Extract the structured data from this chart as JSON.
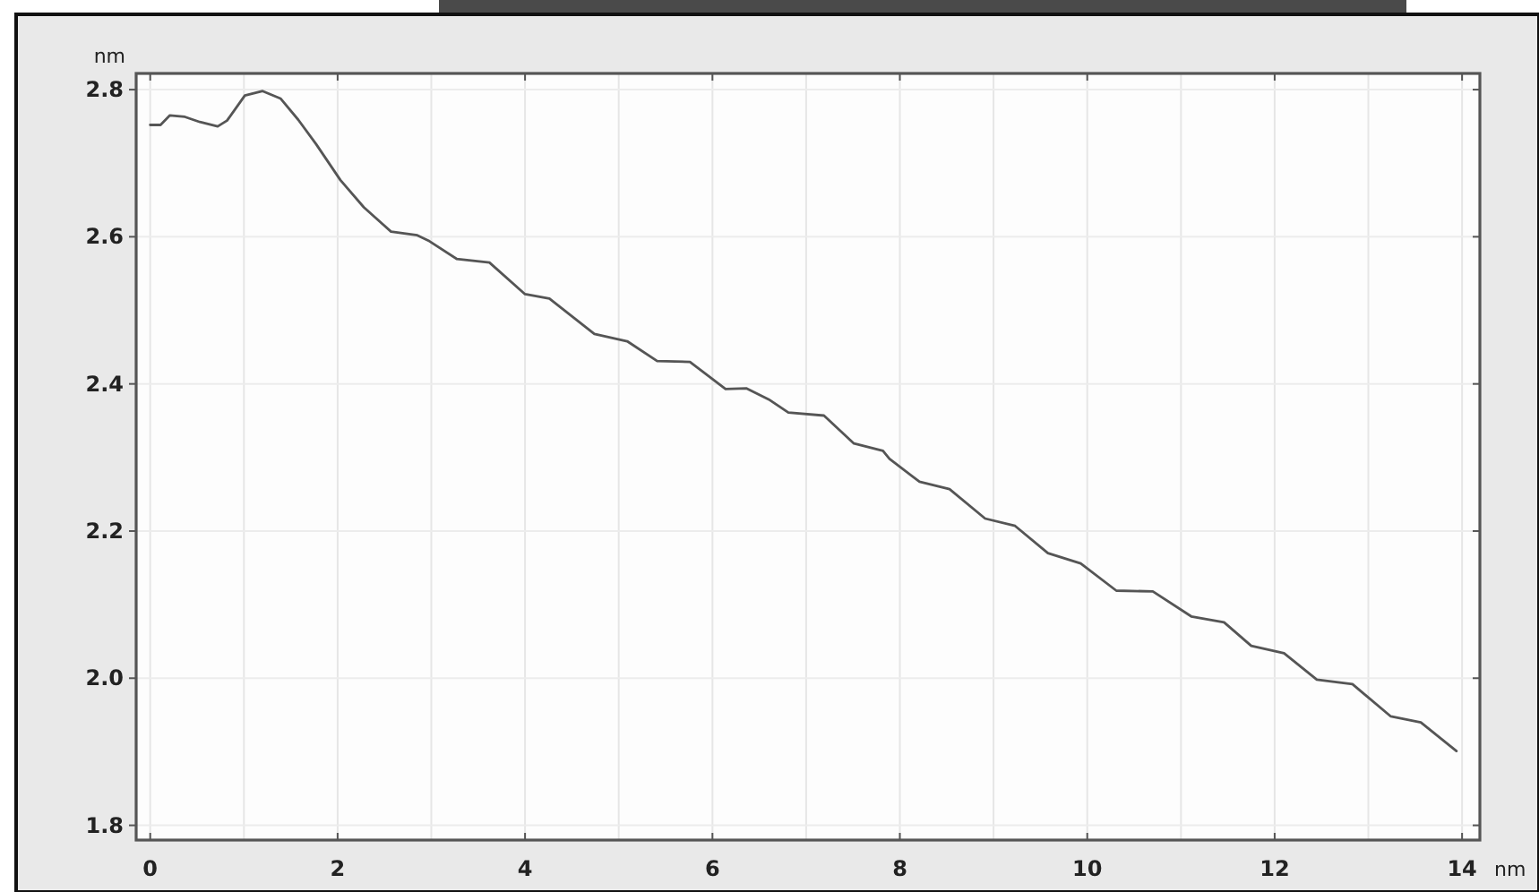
{
  "chart_data": {
    "type": "line",
    "xlabel": "nm",
    "ylabel": "nm",
    "xlim": [
      -0.15,
      14.19
    ],
    "ylim": [
      1.78,
      2.822
    ],
    "xticks": [
      0,
      {
        "value": 1,
        "label": null
      },
      2,
      {
        "value": 3,
        "label": null
      },
      4,
      {
        "value": 5,
        "label": null
      },
      6,
      {
        "value": 7,
        "label": null
      },
      8,
      {
        "value": 9,
        "label": null
      },
      10,
      {
        "value": 11,
        "label": null
      },
      12,
      {
        "value": 13,
        "label": null
      },
      {
        "value": 14,
        "label": "14"
      }
    ],
    "yticks": [
      {
        "value": 1.8,
        "label": "1.8"
      },
      {
        "value": 2.0,
        "label": "2.0"
      },
      {
        "value": 2.2,
        "label": "2.2"
      },
      {
        "value": 2.4,
        "label": "2.4"
      },
      {
        "value": 2.6,
        "label": "2.6"
      },
      {
        "value": 2.8,
        "label": "2.8"
      }
    ],
    "grid": true,
    "marker": "none",
    "line_style": "solid",
    "series": [
      {
        "color": "#555555",
        "x": [
          0,
          0.11,
          0.21,
          0.37,
          0.53,
          0.72,
          0.82,
          1.01,
          1.2,
          1.39,
          1.58,
          1.77,
          2.03,
          2.28,
          2.57,
          2.85,
          2.98,
          3.27,
          3.62,
          4.0,
          4.26,
          4.74,
          5.09,
          5.41,
          5.76,
          6.14,
          6.36,
          6.6,
          6.81,
          7.19,
          7.51,
          7.82,
          7.89,
          8.21,
          8.53,
          8.91,
          9.23,
          9.58,
          9.93,
          10.31,
          10.7,
          11.11,
          11.46,
          11.75,
          12.1,
          12.45,
          12.83,
          13.24,
          13.56,
          13.94
        ],
        "values": [
          2.752,
          2.752,
          2.765,
          2.763,
          2.756,
          2.75,
          2.758,
          2.792,
          2.798,
          2.788,
          2.759,
          2.726,
          2.677,
          2.64,
          2.607,
          2.602,
          2.594,
          2.57,
          2.565,
          2.522,
          2.516,
          2.468,
          2.458,
          2.431,
          2.43,
          2.393,
          2.394,
          2.379,
          2.361,
          2.357,
          2.319,
          2.309,
          2.298,
          2.267,
          2.257,
          2.217,
          2.207,
          2.17,
          2.156,
          2.119,
          2.118,
          2.084,
          2.076,
          2.044,
          2.034,
          1.998,
          1.992,
          1.948,
          1.94,
          1.901
        ]
      }
    ]
  }
}
